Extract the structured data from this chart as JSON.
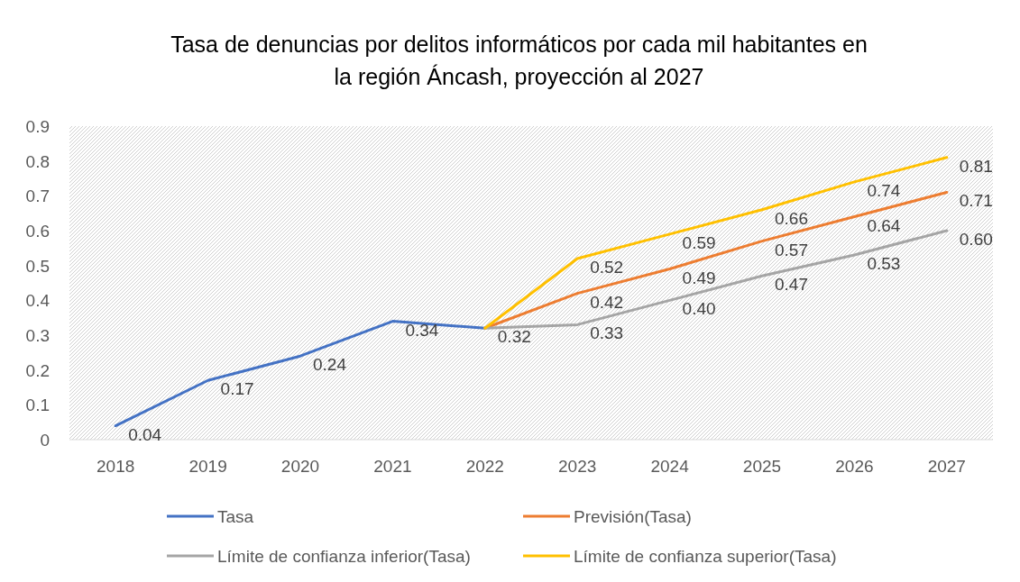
{
  "chart_data": {
    "type": "line",
    "title": "Tasa de denuncias por delitos informáticos por cada mil habitantes en\nla región Áncash, proyección al 2027",
    "categories": [
      "2018",
      "2019",
      "2020",
      "2021",
      "2022",
      "2023",
      "2024",
      "2025",
      "2026",
      "2027"
    ],
    "series": [
      {
        "name": "Tasa",
        "color": "#4472c4",
        "values": [
          0.04,
          0.17,
          0.24,
          0.34,
          0.32,
          null,
          null,
          null,
          null,
          null
        ],
        "value_labels": [
          "0.04",
          "0.17",
          "0.24",
          "0.34",
          "0.32",
          null,
          null,
          null,
          null,
          null
        ]
      },
      {
        "name": "Previsión(Tasa)",
        "color": "#ed7d31",
        "values": [
          null,
          null,
          null,
          null,
          0.32,
          0.42,
          0.49,
          0.57,
          0.64,
          0.71
        ],
        "value_labels": [
          null,
          null,
          null,
          null,
          null,
          "0.42",
          "0.49",
          "0.57",
          "0.64",
          "0.71"
        ]
      },
      {
        "name": "Límite de confianza inferior(Tasa)",
        "color": "#a5a5a5",
        "values": [
          null,
          null,
          null,
          null,
          0.32,
          0.33,
          0.4,
          0.47,
          0.53,
          0.6
        ],
        "value_labels": [
          null,
          null,
          null,
          null,
          null,
          "0.33",
          "0.40",
          "0.47",
          "0.53",
          "0.60"
        ]
      },
      {
        "name": "Límite de confianza superior(Tasa)",
        "color": "#ffc000",
        "values": [
          null,
          null,
          null,
          null,
          0.32,
          0.52,
          0.59,
          0.66,
          0.74,
          0.81
        ],
        "value_labels": [
          null,
          null,
          null,
          null,
          null,
          "0.52",
          "0.59",
          "0.66",
          "0.74",
          "0.81"
        ]
      }
    ],
    "ylim": [
      0,
      0.9
    ],
    "yticks": [
      0,
      0.1,
      0.2,
      0.3,
      0.4,
      0.5,
      0.6,
      0.7,
      0.8,
      0.9
    ],
    "legend": "bottom",
    "marker": "none",
    "line_style": "solid"
  }
}
